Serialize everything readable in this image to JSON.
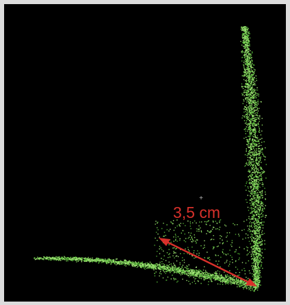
{
  "annotation": "3,5 cm"
}
